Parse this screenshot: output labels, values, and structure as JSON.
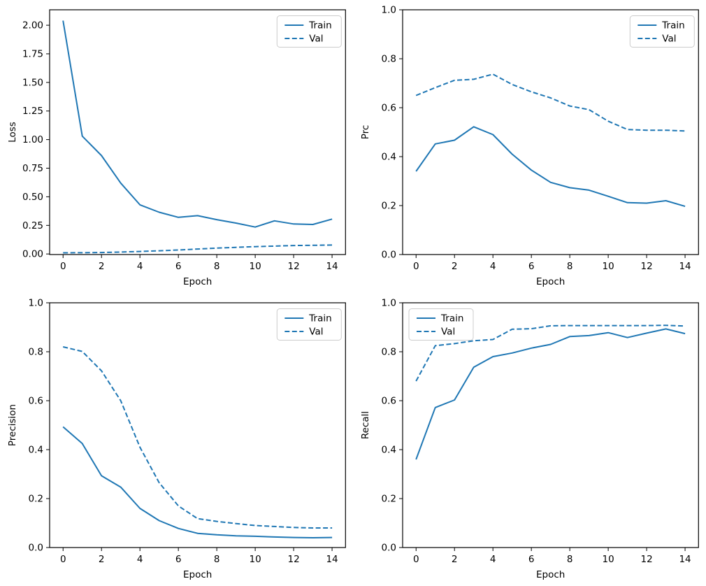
{
  "figure": {
    "background": "#ffffff",
    "line_color": "#1f77b4",
    "axes_color": "#000000",
    "text_color": "#000000",
    "legend_border_color": "#cccccc",
    "legend_background": "rgba(255,255,255,0.8)"
  },
  "chart_data": [
    {
      "type": "line",
      "title": "",
      "xlabel": "Epoch",
      "ylabel": "Loss",
      "x": [
        0,
        1,
        2,
        3,
        4,
        5,
        6,
        7,
        8,
        9,
        10,
        11,
        12,
        13,
        14
      ],
      "series": [
        {
          "name": "Train",
          "style": "solid",
          "values": [
            2.04,
            1.03,
            0.86,
            0.62,
            0.43,
            0.365,
            0.32,
            0.335,
            0.3,
            0.27,
            0.235,
            0.29,
            0.262,
            0.258,
            0.305
          ]
        },
        {
          "name": "Val",
          "style": "dashed",
          "values": [
            0.01,
            0.011,
            0.013,
            0.017,
            0.022,
            0.028,
            0.035,
            0.043,
            0.051,
            0.058,
            0.064,
            0.069,
            0.074,
            0.076,
            0.078
          ]
        }
      ],
      "xlim": [
        -0.7,
        14.7
      ],
      "ylim": [
        -0.005,
        2.135
      ],
      "xticks": [
        0,
        2,
        4,
        6,
        8,
        10,
        12,
        14
      ],
      "xtick_labels": [
        "0",
        "2",
        "4",
        "6",
        "8",
        "10",
        "12",
        "14"
      ],
      "yticks": [
        0,
        0.25,
        0.5,
        0.75,
        1.0,
        1.25,
        1.5,
        1.75,
        2.0
      ],
      "ytick_labels": [
        "0.00",
        "0.25",
        "0.50",
        "0.75",
        "1.00",
        "1.25",
        "1.50",
        "1.75",
        "2.00"
      ],
      "grid": false,
      "legend_position": "upper-right",
      "legend_entries": [
        "Train",
        "Val"
      ]
    },
    {
      "type": "line",
      "title": "",
      "xlabel": "Epoch",
      "ylabel": "Prc",
      "x": [
        0,
        1,
        2,
        3,
        4,
        5,
        6,
        7,
        8,
        9,
        10,
        11,
        12,
        13,
        14
      ],
      "series": [
        {
          "name": "Train",
          "style": "solid",
          "values": [
            0.34,
            0.452,
            0.467,
            0.522,
            0.49,
            0.41,
            0.345,
            0.295,
            0.273,
            0.263,
            0.238,
            0.212,
            0.21,
            0.22,
            0.197
          ]
        },
        {
          "name": "Val",
          "style": "dashed",
          "values": [
            0.65,
            0.682,
            0.712,
            0.716,
            0.737,
            0.695,
            0.665,
            0.64,
            0.607,
            0.592,
            0.545,
            0.511,
            0.508,
            0.508,
            0.505
          ]
        }
      ],
      "xlim": [
        -0.7,
        14.7
      ],
      "ylim": [
        0,
        1
      ],
      "xticks": [
        0,
        2,
        4,
        6,
        8,
        10,
        12,
        14
      ],
      "xtick_labels": [
        "0",
        "2",
        "4",
        "6",
        "8",
        "10",
        "12",
        "14"
      ],
      "yticks": [
        0,
        0.2,
        0.4,
        0.6,
        0.8,
        1.0
      ],
      "ytick_labels": [
        "0.0",
        "0.2",
        "0.4",
        "0.6",
        "0.8",
        "1.0"
      ],
      "grid": false,
      "legend_position": "upper-right",
      "legend_entries": [
        "Train",
        "Val"
      ]
    },
    {
      "type": "line",
      "title": "",
      "xlabel": "Epoch",
      "ylabel": "Precision",
      "x": [
        0,
        1,
        2,
        3,
        4,
        5,
        6,
        7,
        8,
        9,
        10,
        11,
        12,
        13,
        14
      ],
      "series": [
        {
          "name": "Train",
          "style": "solid",
          "values": [
            0.493,
            0.425,
            0.293,
            0.247,
            0.16,
            0.11,
            0.078,
            0.058,
            0.052,
            0.048,
            0.046,
            0.043,
            0.041,
            0.04,
            0.041
          ]
        },
        {
          "name": "Val",
          "style": "dashed",
          "values": [
            0.82,
            0.801,
            0.722,
            0.6,
            0.41,
            0.265,
            0.17,
            0.118,
            0.107,
            0.098,
            0.09,
            0.086,
            0.082,
            0.08,
            0.08
          ]
        }
      ],
      "xlim": [
        -0.7,
        14.7
      ],
      "ylim": [
        0,
        1
      ],
      "xticks": [
        0,
        2,
        4,
        6,
        8,
        10,
        12,
        14
      ],
      "xtick_labels": [
        "0",
        "2",
        "4",
        "6",
        "8",
        "10",
        "12",
        "14"
      ],
      "yticks": [
        0,
        0.2,
        0.4,
        0.6,
        0.8,
        1.0
      ],
      "ytick_labels": [
        "0.0",
        "0.2",
        "0.4",
        "0.6",
        "0.8",
        "1.0"
      ],
      "grid": false,
      "legend_position": "upper-right",
      "legend_entries": [
        "Train",
        "Val"
      ]
    },
    {
      "type": "line",
      "title": "",
      "xlabel": "Epoch",
      "ylabel": "Recall",
      "x": [
        0,
        1,
        2,
        3,
        4,
        5,
        6,
        7,
        8,
        9,
        10,
        11,
        12,
        13,
        14
      ],
      "series": [
        {
          "name": "Train",
          "style": "solid",
          "values": [
            0.36,
            0.572,
            0.603,
            0.737,
            0.78,
            0.795,
            0.815,
            0.83,
            0.862,
            0.866,
            0.878,
            0.858,
            0.876,
            0.893,
            0.874
          ]
        },
        {
          "name": "Val",
          "style": "dashed",
          "values": [
            0.68,
            0.825,
            0.833,
            0.845,
            0.85,
            0.892,
            0.894,
            0.906,
            0.907,
            0.907,
            0.907,
            0.907,
            0.907,
            0.908,
            0.905
          ]
        }
      ],
      "xlim": [
        -0.7,
        14.7
      ],
      "ylim": [
        0,
        1
      ],
      "xticks": [
        0,
        2,
        4,
        6,
        8,
        10,
        12,
        14
      ],
      "xtick_labels": [
        "0",
        "2",
        "4",
        "6",
        "8",
        "10",
        "12",
        "14"
      ],
      "yticks": [
        0,
        0.2,
        0.4,
        0.6,
        0.8,
        1.0
      ],
      "ytick_labels": [
        "0.0",
        "0.2",
        "0.4",
        "0.6",
        "0.8",
        "1.0"
      ],
      "grid": false,
      "legend_position": "upper-left",
      "legend_entries": [
        "Train",
        "Val"
      ]
    }
  ]
}
